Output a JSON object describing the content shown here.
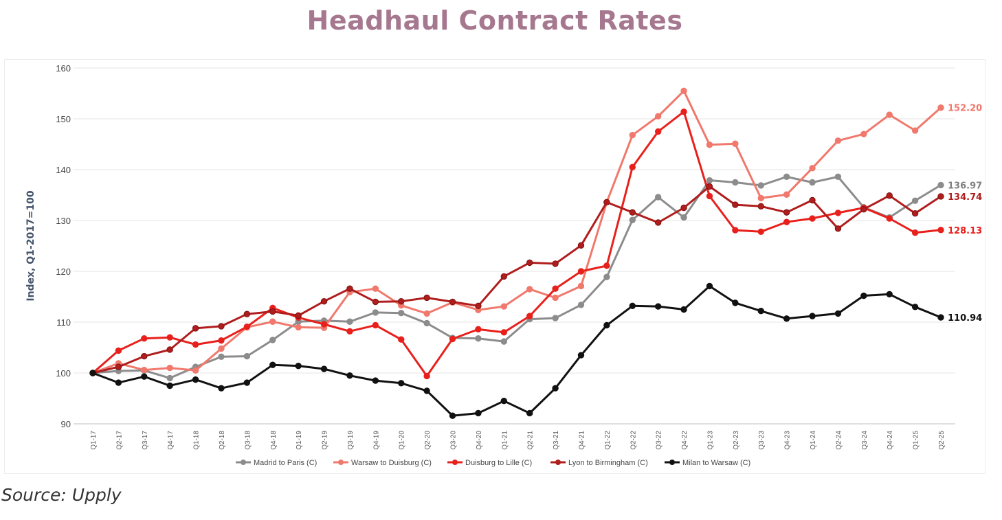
{
  "page": {
    "title": "Headhaul Contract Rates",
    "source": "Source: Upply"
  },
  "chart_data": {
    "type": "line",
    "title": "Headhaul Contract Rates",
    "xlabel": "",
    "ylabel": "Index, Q1-2017=100",
    "ylim": [
      90,
      160
    ],
    "yticks": [
      90,
      100,
      110,
      120,
      130,
      140,
      150,
      160
    ],
    "grid": true,
    "legend_position": "bottom",
    "x": [
      "Q1-17",
      "Q2-17",
      "Q3-17",
      "Q4-17",
      "Q1-18",
      "Q2-18",
      "Q3-18",
      "Q4-18",
      "Q1-19",
      "Q2-19",
      "Q3-19",
      "Q4-19",
      "Q1-20",
      "Q2-20",
      "Q3-20",
      "Q4-20",
      "Q1-21",
      "Q2-21",
      "Q3-21",
      "Q4-21",
      "Q1-22",
      "Q2-22",
      "Q3-22",
      "Q4-22",
      "Q1-23",
      "Q2-23",
      "Q3-23",
      "Q4-23",
      "Q1-24",
      "Q2-24",
      "Q3-24",
      "Q4-24",
      "Q1-25",
      "Q2-25"
    ],
    "series": [
      {
        "name": "Madrid to Paris (C)",
        "color": "#8c8c8c",
        "end_label": "136.97",
        "values": [
          100,
          100.4,
          100.5,
          99.0,
          101.2,
          103.2,
          103.3,
          106.5,
          110.1,
          110.3,
          110.1,
          111.9,
          111.8,
          109.8,
          106.9,
          106.8,
          106.2,
          110.6,
          110.8,
          113.4,
          118.9,
          130.1,
          134.6,
          130.6,
          137.9,
          137.5,
          136.9,
          138.6,
          137.5,
          138.6,
          132.6,
          130.6,
          133.9,
          136.97
        ]
      },
      {
        "name": "Warsaw to Duisburg (C)",
        "color": "#f0786c",
        "end_label": "152.20",
        "values": [
          100,
          101.9,
          100.6,
          101.0,
          100.5,
          104.8,
          109.0,
          110.1,
          109.0,
          108.9,
          115.9,
          116.6,
          113.3,
          111.7,
          113.9,
          112.4,
          113.1,
          116.5,
          114.8,
          117.1,
          133.6,
          146.8,
          150.5,
          155.5,
          144.9,
          145.1,
          134.4,
          135.1,
          140.3,
          145.7,
          147.0,
          150.8,
          147.7,
          152.2
        ]
      },
      {
        "name": "Duisburg to Lille (C)",
        "color": "#e8201c",
        "end_label": "128.13",
        "values": [
          100,
          104.4,
          106.8,
          107.0,
          105.6,
          106.4,
          109.1,
          112.8,
          110.9,
          109.6,
          108.2,
          109.4,
          106.6,
          99.4,
          106.7,
          108.6,
          108.0,
          111.2,
          116.6,
          120.0,
          121.1,
          140.5,
          147.5,
          151.4,
          134.8,
          128.1,
          127.8,
          129.7,
          130.4,
          131.5,
          132.5,
          130.4,
          127.6,
          128.13
        ]
      },
      {
        "name": "Lyon to Birmingham (C)",
        "color": "#b01d1d",
        "end_label": "134.74",
        "values": [
          100,
          101.2,
          103.3,
          104.6,
          108.8,
          109.2,
          111.6,
          112.1,
          111.3,
          114.1,
          116.6,
          114.0,
          114.1,
          114.8,
          114.0,
          113.2,
          119.0,
          121.7,
          121.5,
          125.1,
          133.6,
          131.6,
          129.6,
          132.5,
          136.7,
          133.1,
          132.8,
          131.6,
          134.0,
          128.4,
          132.2,
          134.9,
          131.4,
          134.74
        ]
      },
      {
        "name": "Milan to Warsaw (C)",
        "color": "#111111",
        "end_label": "110.94",
        "values": [
          100,
          98.1,
          99.3,
          97.5,
          98.7,
          97.0,
          98.1,
          101.6,
          101.4,
          100.8,
          99.5,
          98.5,
          98.0,
          96.5,
          91.6,
          92.1,
          94.5,
          92.1,
          97.0,
          103.5,
          109.4,
          113.2,
          113.1,
          112.5,
          117.1,
          113.8,
          112.2,
          110.7,
          111.2,
          111.7,
          115.2,
          115.5,
          113.0,
          110.94
        ]
      }
    ]
  }
}
